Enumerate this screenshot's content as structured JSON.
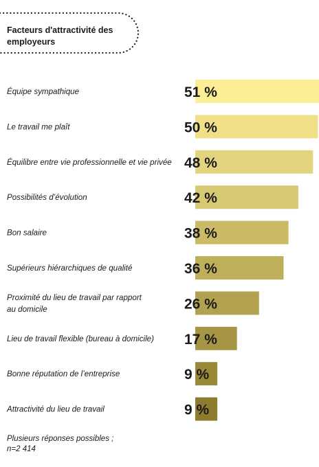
{
  "title": "Facteurs d'attractivité des employeurs",
  "footnote": {
    "line1": "Plusieurs réponses possibles ;",
    "line2": "n=2 414"
  },
  "colors": {
    "bar_light": "#fcee94",
    "bar_dark": "#8d7c2e",
    "text": "#1a1a1a"
  },
  "chart_data": {
    "type": "bar",
    "orientation": "horizontal",
    "unit": "%",
    "categories": [
      [
        "Équipe sympathique"
      ],
      [
        "Le travail me plaît"
      ],
      [
        "Équilibre entre vie professionnelle et vie privée"
      ],
      [
        "Possibilités d’évolution"
      ],
      [
        "Bon salaire"
      ],
      [
        "Supérieurs hiérarchiques de qualité"
      ],
      [
        "Proximité du lieu de travail par rapport",
        "au domicile"
      ],
      [
        "Lieu de travail flexible (bureau à  domicile)"
      ],
      [
        "Bonne réputation de l’entreprise"
      ],
      [
        "Attractivité du lieu de travail"
      ]
    ],
    "values": [
      51,
      50,
      48,
      42,
      38,
      36,
      26,
      17,
      9,
      9
    ],
    "value_labels": [
      "51 %",
      "50 %",
      "48 %",
      "42 %",
      "38 %",
      "36 %",
      "26 %",
      "17 %",
      "9 %",
      "9 %"
    ]
  }
}
